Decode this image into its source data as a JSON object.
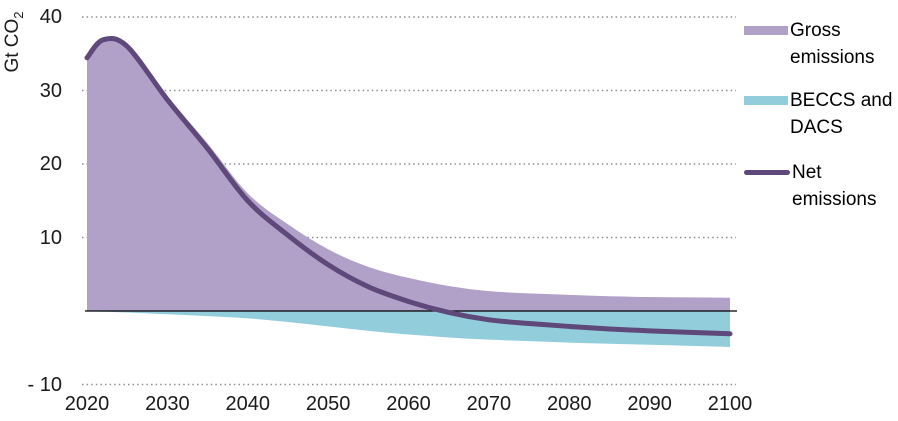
{
  "chart_data": {
    "type": "area",
    "title": "",
    "ylabel_main": "Gt CO",
    "ylabel_sub": "2",
    "xlabel": "",
    "xlim": [
      2020,
      2100
    ],
    "ylim": [
      -10,
      40
    ],
    "grid": "horizontal dotted",
    "legend_position": "right",
    "x": [
      2020,
      2022,
      2025,
      2030,
      2035,
      2040,
      2045,
      2050,
      2055,
      2060,
      2065,
      2070,
      2075,
      2080,
      2085,
      2090,
      2095,
      2100
    ],
    "series": [
      {
        "name": "Gross emissions",
        "type": "area",
        "color": "#b1a0c8",
        "values": [
          34.5,
          37.0,
          36.2,
          29.2,
          22.8,
          16.0,
          11.8,
          8.4,
          6.0,
          4.5,
          3.4,
          2.7,
          2.4,
          2.2,
          2.0,
          1.9,
          1.85,
          1.8
        ]
      },
      {
        "name": "BECCS and DACS",
        "type": "area",
        "color": "#92cddc",
        "values": [
          -0.05,
          -0.1,
          -0.2,
          -0.45,
          -0.7,
          -1.0,
          -1.5,
          -2.1,
          -2.7,
          -3.2,
          -3.6,
          -3.9,
          -4.1,
          -4.3,
          -4.45,
          -4.6,
          -4.75,
          -4.9
        ]
      },
      {
        "name": "Net emissions",
        "type": "line",
        "color": "#5f497a",
        "values": [
          34.45,
          36.9,
          36.0,
          28.75,
          22.1,
          15.0,
          10.3,
          6.3,
          3.3,
          1.3,
          -0.2,
          -1.2,
          -1.7,
          -2.1,
          -2.45,
          -2.7,
          -2.9,
          -3.1
        ]
      }
    ],
    "y_ticks": [
      {
        "value": 40,
        "label": "40"
      },
      {
        "value": 30,
        "label": "30"
      },
      {
        "value": 20,
        "label": "20"
      },
      {
        "value": 10,
        "label": "10"
      },
      {
        "value": -10,
        "label": "- 10"
      }
    ],
    "x_ticks": [
      {
        "value": 2020,
        "label": "2020"
      },
      {
        "value": 2030,
        "label": "2030"
      },
      {
        "value": 2040,
        "label": "2040"
      },
      {
        "value": 2050,
        "label": "2050"
      },
      {
        "value": 2060,
        "label": "2060"
      },
      {
        "value": 2070,
        "label": "2070"
      },
      {
        "value": 2080,
        "label": "2080"
      },
      {
        "value": 2090,
        "label": "2090"
      },
      {
        "value": 2100,
        "label": "2100"
      }
    ]
  },
  "legend": {
    "items": [
      {
        "label": "Gross\nemissions",
        "swatch": "rect",
        "color": "#b1a0c8"
      },
      {
        "label": "BECCS and\nDACS",
        "swatch": "rect",
        "color": "#92cddc"
      },
      {
        "label": "Net\nemissions",
        "swatch": "line",
        "color": "#5f497a"
      }
    ]
  },
  "colors": {
    "gross_area": "#b1a0c8",
    "beccs_area": "#92cddc",
    "net_line": "#5f497a",
    "zero_axis": "#000000",
    "gridline": "#8f8f8f",
    "text": "#1a1a1a"
  }
}
